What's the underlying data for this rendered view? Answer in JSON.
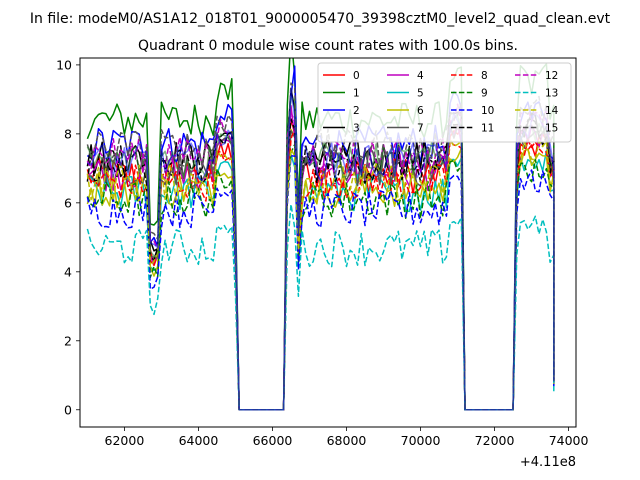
{
  "figure": {
    "suptitle": "In file: modeM0/AS1A12_018T01_9000005470_39398cztM0_level2_quad_clean.evt"
  },
  "chart_data": {
    "type": "line",
    "title": "Quadrant 0 module wise count rates with 100.0s bins.",
    "xlabel": "",
    "ylabel": "",
    "x_offset_label": "+4.11e8",
    "xlim": [
      60800,
      74200
    ],
    "ylim": [
      -0.5,
      10.2
    ],
    "xticks": [
      62000,
      64000,
      66000,
      68000,
      70000,
      72000,
      74000
    ],
    "yticks": [
      0,
      2,
      4,
      6,
      8,
      10
    ],
    "legend": {
      "placement": "top-right",
      "columns": 4
    },
    "segments": [
      {
        "start": 61000,
        "end": 65000
      },
      {
        "start": 66400,
        "end": 71100
      },
      {
        "start": 72600,
        "end": 73600
      }
    ],
    "series": [
      {
        "name": "0",
        "color": "#ff0000",
        "dash": "solid",
        "alpha": 1.0,
        "level": 6.8
      },
      {
        "name": "1",
        "color": "#008000",
        "dash": "solid",
        "alpha": 1.0,
        "level": 8.4
      },
      {
        "name": "2",
        "color": "#0000ff",
        "dash": "solid",
        "alpha": 1.0,
        "level": 7.7
      },
      {
        "name": "3",
        "color": "#000000",
        "dash": "solid",
        "alpha": 1.0,
        "level": 7.3
      },
      {
        "name": "4",
        "color": "#bf00bf",
        "dash": "solid",
        "alpha": 1.0,
        "level": 6.9
      },
      {
        "name": "5",
        "color": "#00bfbf",
        "dash": "solid",
        "alpha": 1.0,
        "level": 6.3
      },
      {
        "name": "6",
        "color": "#bfbf00",
        "dash": "solid",
        "alpha": 1.0,
        "level": 6.4
      },
      {
        "name": "7",
        "color": "#555555",
        "dash": "solid",
        "alpha": 1.0,
        "level": 7.0
      },
      {
        "name": "8",
        "color": "#ff0000",
        "dash": "dashed",
        "alpha": 1.0,
        "level": 6.6
      },
      {
        "name": "9",
        "color": "#008000",
        "dash": "dashed",
        "alpha": 1.0,
        "level": 6.1
      },
      {
        "name": "10",
        "color": "#0000ff",
        "dash": "dashed",
        "alpha": 1.0,
        "level": 5.8
      },
      {
        "name": "11",
        "color": "#000000",
        "dash": "dashed",
        "alpha": 1.0,
        "level": 7.1
      },
      {
        "name": "12",
        "color": "#bf00bf",
        "dash": "dashed",
        "alpha": 1.0,
        "level": 7.4
      },
      {
        "name": "13",
        "color": "#00bfbf",
        "dash": "dashed",
        "alpha": 1.0,
        "level": 4.7
      },
      {
        "name": "14",
        "color": "#bfbf00",
        "dash": "dashed",
        "alpha": 1.0,
        "level": 6.6
      },
      {
        "name": "15",
        "color": "#555555",
        "dash": "dashed",
        "alpha": 1.0,
        "level": 7.6
      },
      {
        "name": "",
        "color": "#2e8b2e",
        "dash": "solid",
        "alpha": 0.6,
        "level": 7.2
      },
      {
        "name": "",
        "color": "#0000ff",
        "dash": "solid",
        "alpha": 0.5,
        "level": 7.2
      }
    ]
  }
}
